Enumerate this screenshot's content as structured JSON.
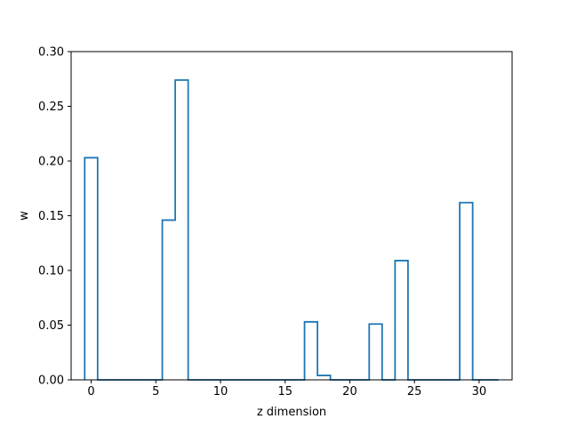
{
  "chart_data": {
    "type": "step",
    "title": "",
    "xlabel": "z dimension",
    "ylabel": "w",
    "xlim": [
      -1.55,
      32.55
    ],
    "ylim": [
      0.0,
      0.3
    ],
    "x_ticks": [
      0,
      5,
      10,
      15,
      20,
      25,
      30
    ],
    "y_ticks": [
      "0.00",
      "0.05",
      "0.10",
      "0.15",
      "0.20",
      "0.25",
      "0.30"
    ],
    "grid": false,
    "series": [
      {
        "color": "#1f77b4",
        "bins": [
          {
            "z": 0,
            "w": 0.203
          },
          {
            "z": 1,
            "w": 0.0
          },
          {
            "z": 2,
            "w": 0.0
          },
          {
            "z": 3,
            "w": 0.0
          },
          {
            "z": 4,
            "w": 0.0
          },
          {
            "z": 5,
            "w": 0.0
          },
          {
            "z": 6,
            "w": 0.146
          },
          {
            "z": 7,
            "w": 0.274
          },
          {
            "z": 8,
            "w": 0.0
          },
          {
            "z": 9,
            "w": 0.0
          },
          {
            "z": 10,
            "w": 0.0
          },
          {
            "z": 11,
            "w": 0.0
          },
          {
            "z": 12,
            "w": 0.0
          },
          {
            "z": 13,
            "w": 0.0
          },
          {
            "z": 14,
            "w": 0.0
          },
          {
            "z": 15,
            "w": 0.0
          },
          {
            "z": 16,
            "w": 0.0
          },
          {
            "z": 17,
            "w": 0.053
          },
          {
            "z": 18,
            "w": 0.004
          },
          {
            "z": 19,
            "w": 0.0
          },
          {
            "z": 20,
            "w": 0.0
          },
          {
            "z": 21,
            "w": 0.0
          },
          {
            "z": 22,
            "w": 0.051
          },
          {
            "z": 23,
            "w": 0.0
          },
          {
            "z": 24,
            "w": 0.109
          },
          {
            "z": 25,
            "w": 0.0
          },
          {
            "z": 26,
            "w": 0.0
          },
          {
            "z": 27,
            "w": 0.0
          },
          {
            "z": 28,
            "w": 0.0
          },
          {
            "z": 29,
            "w": 0.162
          },
          {
            "z": 30,
            "w": 0.0
          },
          {
            "z": 31,
            "w": 0.0
          }
        ]
      }
    ]
  }
}
